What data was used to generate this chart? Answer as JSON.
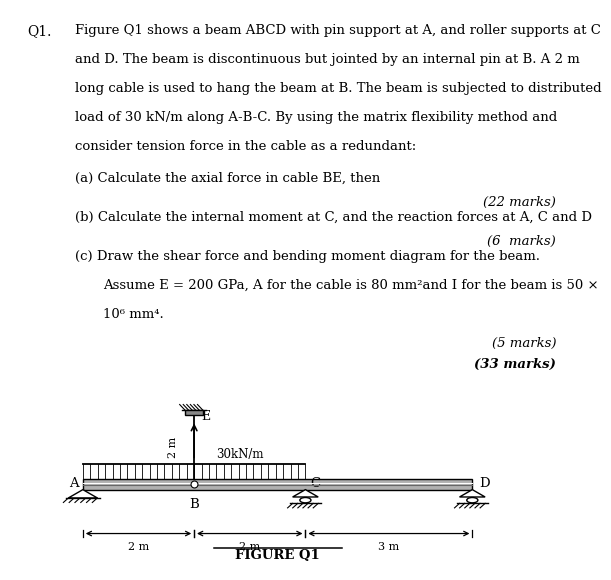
{
  "title_q": "Q1.",
  "para_lines": [
    "Figure Q1 shows a beam ABCD with pin support at A, and roller supports at C",
    "and D. The beam is discontinuous but jointed by an internal pin at B. A 2 m",
    "long cable is used to hang the beam at B. The beam is subjected to distributed",
    "load of 30 kN/m along A-B-C. By using the matrix flexibility method and",
    "consider tension force in the cable as a redundant:"
  ],
  "part_a": "(a) Calculate the axial force in cable BE, then",
  "marks_a": "(22 marks)",
  "part_b": "(b) Calculate the internal moment at C, and the reaction forces at A, C and D",
  "marks_b": "(6  marks)",
  "part_c": "(c) Draw the shear force and bending moment diagram for the beam.",
  "assume1": "Assume E = 200 GPa, A for the cable is 80 mm²and I for the beam is 50 ×",
  "assume2": "10⁶ mm⁴.",
  "marks_c": "(5 marks)",
  "marks_total": "(33 marks)",
  "figure_label": "FIGURE Q1",
  "bg_color": "#ffffff",
  "text_color": "#000000"
}
